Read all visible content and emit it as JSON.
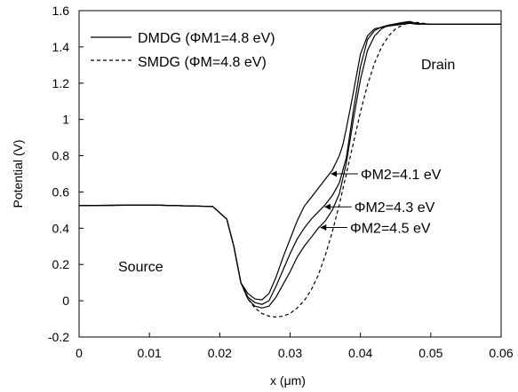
{
  "chart_data": {
    "type": "line",
    "xlabel": "x (μm)",
    "ylabel": "Potential (V)",
    "xlim": [
      0,
      0.06
    ],
    "ylim": [
      -0.2,
      1.6
    ],
    "x_ticks": [
      "0",
      "0.01",
      "0.02",
      "0.03",
      "0.04",
      "0.05",
      "0.06"
    ],
    "y_ticks": [
      "-0.2",
      "0",
      "0.2",
      "0.4",
      "0.6",
      "0.8",
      "1",
      "1.2",
      "1.4",
      "1.6"
    ],
    "grid": false,
    "legend_position": "top-left",
    "legend": [
      {
        "label": "DMDG (ΦM1=4.8 eV)",
        "style": "solid"
      },
      {
        "label": "SMDG (ΦM=4.8 eV)",
        "style": "dashed"
      }
    ],
    "region_labels": {
      "source": "Source",
      "drain": "Drain"
    },
    "annotations": [
      {
        "label": "ΦM2=4.1 eV",
        "series_index": 0,
        "arrow_x": 0.0356
      },
      {
        "label": "ΦM2=4.3 eV",
        "series_index": 1,
        "arrow_x": 0.0347
      },
      {
        "label": "ΦM2=4.5 eV",
        "series_index": 2,
        "arrow_x": 0.0341
      }
    ],
    "series": [
      {
        "line_style": "solid",
        "x": [
          0,
          0.01,
          0.019,
          0.021,
          0.022,
          0.023,
          0.024,
          0.025,
          0.026,
          0.027,
          0.028,
          0.029,
          0.03,
          0.031,
          0.032,
          0.033,
          0.034,
          0.035,
          0.036,
          0.037,
          0.0375,
          0.038,
          0.039,
          0.04,
          0.041,
          0.042,
          0.044,
          0.046,
          0.047,
          0.048,
          0.05,
          0.06
        ],
        "y": [
          0.525,
          0.528,
          0.52,
          0.45,
          0.3,
          0.1,
          0.04,
          0.01,
          0.005,
          0.04,
          0.13,
          0.24,
          0.34,
          0.44,
          0.52,
          0.57,
          0.62,
          0.67,
          0.72,
          0.8,
          0.86,
          0.95,
          1.15,
          1.36,
          1.46,
          1.5,
          1.515,
          1.525,
          1.53,
          1.525,
          1.525,
          1.525
        ]
      },
      {
        "line_style": "solid",
        "x": [
          0,
          0.01,
          0.019,
          0.021,
          0.022,
          0.023,
          0.024,
          0.025,
          0.026,
          0.027,
          0.028,
          0.029,
          0.03,
          0.031,
          0.032,
          0.033,
          0.034,
          0.035,
          0.036,
          0.037,
          0.038,
          0.039,
          0.04,
          0.041,
          0.042,
          0.043,
          0.044,
          0.046,
          0.047,
          0.048,
          0.05,
          0.06
        ],
        "y": [
          0.525,
          0.528,
          0.52,
          0.45,
          0.3,
          0.1,
          0.02,
          -0.01,
          -0.02,
          0.0,
          0.08,
          0.17,
          0.26,
          0.34,
          0.4,
          0.45,
          0.49,
          0.53,
          0.58,
          0.65,
          0.79,
          1.05,
          1.29,
          1.44,
          1.49,
          1.51,
          1.52,
          1.53,
          1.535,
          1.53,
          1.525,
          1.525
        ]
      },
      {
        "line_style": "solid",
        "x": [
          0,
          0.01,
          0.019,
          0.021,
          0.022,
          0.023,
          0.024,
          0.025,
          0.026,
          0.027,
          0.028,
          0.029,
          0.03,
          0.031,
          0.032,
          0.033,
          0.034,
          0.035,
          0.036,
          0.037,
          0.038,
          0.039,
          0.04,
          0.041,
          0.042,
          0.043,
          0.044,
          0.046,
          0.047,
          0.048,
          0.05,
          0.06
        ],
        "y": [
          0.525,
          0.528,
          0.52,
          0.45,
          0.3,
          0.1,
          0.01,
          -0.03,
          -0.04,
          -0.03,
          0.02,
          0.09,
          0.16,
          0.24,
          0.3,
          0.35,
          0.4,
          0.44,
          0.5,
          0.59,
          0.76,
          1.0,
          1.22,
          1.38,
          1.46,
          1.5,
          1.52,
          1.535,
          1.54,
          1.53,
          1.525,
          1.525
        ]
      },
      {
        "line_style": "dashed",
        "x": [
          0,
          0.01,
          0.019,
          0.021,
          0.022,
          0.023,
          0.024,
          0.025,
          0.026,
          0.027,
          0.028,
          0.029,
          0.03,
          0.031,
          0.032,
          0.033,
          0.034,
          0.035,
          0.036,
          0.037,
          0.038,
          0.039,
          0.04,
          0.041,
          0.042,
          0.043,
          0.044,
          0.045,
          0.046,
          0.047,
          0.048,
          0.05,
          0.06
        ],
        "y": [
          0.525,
          0.528,
          0.52,
          0.45,
          0.3,
          0.1,
          0.01,
          -0.04,
          -0.07,
          -0.085,
          -0.09,
          -0.085,
          -0.07,
          -0.04,
          0.0,
          0.06,
          0.14,
          0.25,
          0.38,
          0.53,
          0.7,
          0.87,
          1.04,
          1.19,
          1.31,
          1.4,
          1.46,
          1.5,
          1.52,
          1.535,
          1.535,
          1.525,
          1.525
        ]
      }
    ]
  }
}
